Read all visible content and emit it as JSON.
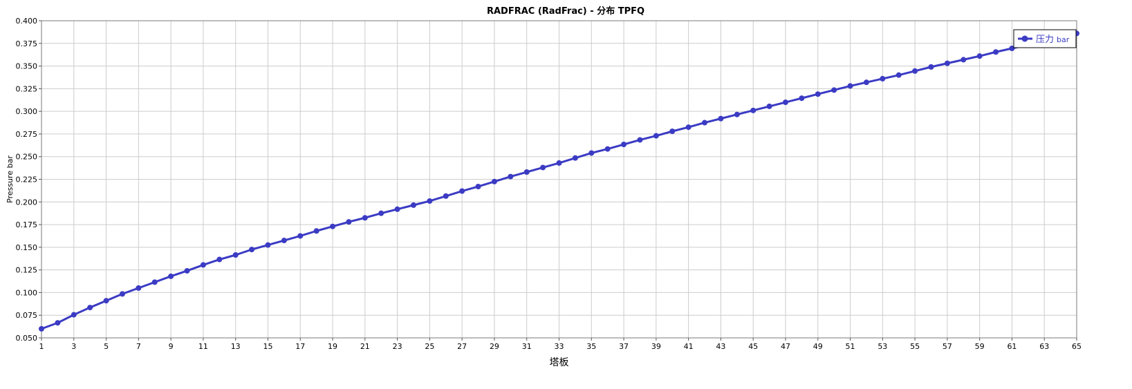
{
  "chart_data": {
    "type": "line",
    "title": "RADFRAC (RadFrac) - 分布 TPFQ",
    "xlabel": "塔板",
    "ylabel": "Pressure bar",
    "xlim": [
      1,
      65
    ],
    "ylim": [
      0.05,
      0.4
    ],
    "x_ticks": [
      "1",
      "3",
      "5",
      "7",
      "9",
      "11",
      "13",
      "15",
      "17",
      "19",
      "21",
      "23",
      "25",
      "27",
      "29",
      "31",
      "33",
      "35",
      "37",
      "39",
      "41",
      "43",
      "45",
      "47",
      "49",
      "51",
      "53",
      "55",
      "57",
      "59",
      "61",
      "63",
      "65"
    ],
    "y_ticks": [
      "0.050",
      "0.075",
      "0.100",
      "0.125",
      "0.150",
      "0.175",
      "0.200",
      "0.225",
      "0.250",
      "0.275",
      "0.300",
      "0.325",
      "0.350",
      "0.375",
      "0.400"
    ],
    "grid": true,
    "legend_position": "top-right",
    "series": [
      {
        "name": "压力",
        "unit": "bar",
        "color": "#3b3bc4",
        "x": [
          1,
          2,
          3,
          4,
          5,
          6,
          7,
          8,
          9,
          10,
          11,
          12,
          13,
          14,
          15,
          16,
          17,
          18,
          19,
          20,
          21,
          22,
          23,
          24,
          25,
          26,
          27,
          28,
          29,
          30,
          31,
          32,
          33,
          34,
          35,
          36,
          37,
          38,
          39,
          40,
          41,
          42,
          43,
          44,
          45,
          46,
          47,
          48,
          49,
          50,
          51,
          52,
          53,
          54,
          55,
          56,
          57,
          58,
          59,
          60,
          61,
          62,
          63,
          64,
          65
        ],
        "values": [
          0.06,
          0.0666,
          0.0755,
          0.0835,
          0.091,
          0.0985,
          0.105,
          0.1115,
          0.118,
          0.124,
          0.1305,
          0.1365,
          0.1415,
          0.1475,
          0.1525,
          0.1575,
          0.1625,
          0.168,
          0.173,
          0.178,
          0.1825,
          0.1875,
          0.192,
          0.1965,
          0.201,
          0.2065,
          0.212,
          0.217,
          0.2225,
          0.228,
          0.233,
          0.238,
          0.243,
          0.2485,
          0.254,
          0.2585,
          0.2635,
          0.2685,
          0.273,
          0.278,
          0.2825,
          0.2875,
          0.292,
          0.2965,
          0.301,
          0.3055,
          0.31,
          0.3145,
          0.319,
          0.3235,
          0.328,
          0.332,
          0.336,
          0.34,
          0.3445,
          0.349,
          0.353,
          0.357,
          0.361,
          0.3655,
          0.3695,
          0.3735,
          0.3775,
          0.3815,
          0.386
        ]
      }
    ]
  }
}
